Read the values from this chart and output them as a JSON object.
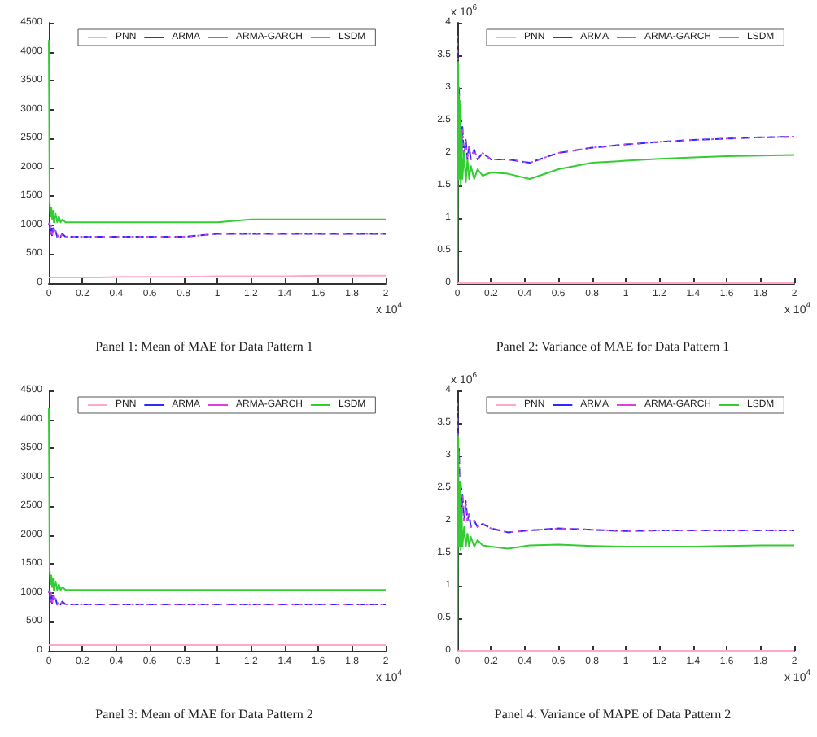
{
  "chart_data": [
    {
      "type": "line",
      "title": "Panel 1: Mean of MAE for Data Pattern 1",
      "legend": "top",
      "grid": false,
      "marker": "none",
      "annotations": [
        "x 10$^{4}$"
      ],
      "x": [
        0,
        0.005,
        0.01,
        0.015,
        0.02,
        0.025,
        0.03,
        0.04,
        0.05,
        0.06,
        0.07,
        0.08,
        0.1,
        0.12,
        0.15,
        0.2,
        0.3,
        0.43,
        0.6,
        0.8,
        1.0,
        1.2,
        1.4,
        1.6,
        1.8,
        2.0
      ],
      "xlim": [
        0,
        2
      ],
      "xticks": [
        0,
        0.2,
        0.4,
        0.6,
        0.8,
        1,
        1.2,
        1.4,
        1.6,
        1.8,
        2
      ],
      "ylim": [
        0,
        4500
      ],
      "yticks": [
        0,
        500,
        1000,
        1500,
        2000,
        2500,
        3000,
        3500,
        4000,
        4500
      ],
      "series": [
        {
          "name": "PNN",
          "color": "#ffa8c8",
          "line_style": "solid",
          "values": [
            100,
            100,
            100,
            100,
            100,
            100,
            100,
            100,
            100,
            100,
            100,
            100,
            100,
            100,
            100,
            100,
            100,
            110,
            110,
            110,
            120,
            120,
            120,
            130,
            130,
            130
          ]
        },
        {
          "name": "ARMA",
          "color": "#2b2bff",
          "line_style": "dashed",
          "values": [
            1000,
            1050,
            850,
            1000,
            800,
            950,
            850,
            900,
            800,
            850,
            800,
            850,
            800,
            800,
            800,
            800,
            800,
            800,
            800,
            800,
            850,
            850,
            850,
            850,
            850,
            850
          ]
        },
        {
          "name": "ARMA-GARCH",
          "color": "#e040e0",
          "line_style": "dotted",
          "values": [
            1000,
            1050,
            850,
            1000,
            800,
            950,
            850,
            900,
            800,
            850,
            800,
            850,
            800,
            800,
            800,
            800,
            800,
            800,
            800,
            800,
            850,
            850,
            850,
            850,
            850,
            850
          ]
        },
        {
          "name": "LSDM",
          "color": "#33cc33",
          "line_style": "solid",
          "values": [
            4200,
            1400,
            1150,
            1300,
            1100,
            1250,
            1050,
            1200,
            1050,
            1150,
            1050,
            1100,
            1050,
            1050,
            1050,
            1050,
            1050,
            1050,
            1050,
            1050,
            1050,
            1100,
            1100,
            1100,
            1100,
            1100
          ]
        }
      ]
    },
    {
      "type": "line",
      "title": "Panel 2: Variance of MAE for Data Pattern 1",
      "legend": "top",
      "grid": false,
      "marker": "none",
      "annotations": [
        "x 10$^{4}$",
        "x 10$^{6}$"
      ],
      "x": [
        0,
        0.005,
        0.01,
        0.015,
        0.02,
        0.025,
        0.03,
        0.04,
        0.05,
        0.06,
        0.07,
        0.08,
        0.1,
        0.12,
        0.15,
        0.2,
        0.3,
        0.43,
        0.6,
        0.8,
        1.0,
        1.2,
        1.4,
        1.6,
        1.8,
        2.0
      ],
      "xlim": [
        0,
        2
      ],
      "xticks": [
        0,
        0.2,
        0.4,
        0.6,
        0.8,
        1,
        1.2,
        1.4,
        1.6,
        1.8,
        2
      ],
      "ylim": [
        0,
        4
      ],
      "yticks": [
        0,
        0.5,
        1,
        1.5,
        2,
        2.5,
        3,
        3.5,
        4
      ],
      "series": [
        {
          "name": "PNN",
          "color": "#ffa8c8",
          "line_style": "solid",
          "values": [
            0,
            0,
            0,
            0,
            0,
            0,
            0,
            0,
            0,
            0,
            0,
            0,
            0,
            0,
            0,
            0,
            0,
            0,
            0,
            0,
            0,
            0,
            0,
            0,
            0,
            0
          ]
        },
        {
          "name": "ARMA",
          "color": "#2b2bff",
          "line_style": "dashed",
          "values": [
            3.8,
            2.6,
            3.0,
            2.2,
            2.6,
            2.0,
            2.4,
            1.9,
            2.2,
            1.9,
            2.1,
            1.9,
            2.05,
            1.9,
            2.0,
            1.9,
            1.9,
            1.85,
            2.0,
            2.08,
            2.13,
            2.17,
            2.2,
            2.22,
            2.24,
            2.25
          ]
        },
        {
          "name": "ARMA-GARCH",
          "color": "#e040e0",
          "line_style": "dotted",
          "values": [
            3.8,
            2.6,
            3.0,
            2.2,
            2.6,
            2.0,
            2.4,
            1.9,
            2.2,
            1.9,
            2.1,
            1.9,
            2.05,
            1.9,
            2.0,
            1.9,
            1.9,
            1.85,
            2.0,
            2.08,
            2.13,
            2.17,
            2.2,
            2.22,
            2.24,
            2.25
          ]
        },
        {
          "name": "LSDM",
          "color": "#33cc33",
          "line_style": "solid",
          "values": [
            0,
            3.4,
            1.6,
            2.8,
            1.5,
            2.3,
            1.6,
            2.0,
            1.55,
            1.9,
            1.6,
            1.8,
            1.6,
            1.75,
            1.65,
            1.7,
            1.68,
            1.6,
            1.75,
            1.85,
            1.88,
            1.91,
            1.93,
            1.95,
            1.96,
            1.97
          ]
        }
      ]
    },
    {
      "type": "line",
      "title": "Panel 3: Mean of MAE for Data Pattern 2",
      "legend": "top",
      "grid": false,
      "marker": "none",
      "annotations": [
        "x 10$^{4}$"
      ],
      "x": [
        0,
        0.005,
        0.01,
        0.015,
        0.02,
        0.025,
        0.03,
        0.04,
        0.05,
        0.06,
        0.07,
        0.08,
        0.1,
        0.12,
        0.15,
        0.2,
        0.3,
        0.43,
        0.6,
        0.8,
        1.0,
        1.2,
        1.4,
        1.6,
        1.8,
        2.0
      ],
      "xlim": [
        0,
        2
      ],
      "xticks": [
        0,
        0.2,
        0.4,
        0.6,
        0.8,
        1,
        1.2,
        1.4,
        1.6,
        1.8,
        2
      ],
      "ylim": [
        0,
        4500
      ],
      "yticks": [
        0,
        500,
        1000,
        1500,
        2000,
        2500,
        3000,
        3500,
        4000,
        4500
      ],
      "series": [
        {
          "name": "PNN",
          "color": "#ffa8c8",
          "line_style": "solid",
          "values": [
            100,
            100,
            100,
            100,
            100,
            100,
            100,
            100,
            100,
            100,
            100,
            100,
            100,
            100,
            100,
            100,
            100,
            100,
            100,
            100,
            100,
            100,
            100,
            100,
            100,
            100
          ]
        },
        {
          "name": "ARMA",
          "color": "#2b2bff",
          "line_style": "dashed",
          "values": [
            1000,
            1050,
            850,
            1000,
            800,
            950,
            850,
            900,
            800,
            850,
            800,
            850,
            800,
            800,
            800,
            800,
            800,
            800,
            800,
            800,
            800,
            800,
            800,
            800,
            800,
            800
          ]
        },
        {
          "name": "ARMA-GARCH",
          "color": "#e040e0",
          "line_style": "dotted",
          "values": [
            1000,
            1050,
            850,
            1000,
            800,
            950,
            850,
            900,
            800,
            850,
            800,
            850,
            800,
            800,
            800,
            800,
            800,
            800,
            800,
            800,
            800,
            800,
            800,
            800,
            800,
            800
          ]
        },
        {
          "name": "LSDM",
          "color": "#33cc33",
          "line_style": "solid",
          "values": [
            4200,
            1400,
            1150,
            1300,
            1100,
            1250,
            1050,
            1200,
            1050,
            1150,
            1050,
            1100,
            1050,
            1050,
            1050,
            1050,
            1050,
            1050,
            1050,
            1050,
            1050,
            1050,
            1050,
            1050,
            1050,
            1050
          ]
        }
      ]
    },
    {
      "type": "line",
      "title": "Panel 4: Variance of MAPE of Data Pattern 2",
      "legend": "top",
      "grid": false,
      "marker": "none",
      "annotations": [
        "x 10$^{4}$",
        "x 10$^{6}$"
      ],
      "x": [
        0,
        0.005,
        0.01,
        0.015,
        0.02,
        0.025,
        0.03,
        0.04,
        0.05,
        0.06,
        0.07,
        0.08,
        0.1,
        0.12,
        0.15,
        0.2,
        0.3,
        0.43,
        0.6,
        0.8,
        1.0,
        1.2,
        1.4,
        1.6,
        1.8,
        2.0
      ],
      "xlim": [
        0,
        2
      ],
      "xticks": [
        0,
        0.2,
        0.4,
        0.6,
        0.8,
        1,
        1.2,
        1.4,
        1.6,
        1.8,
        2
      ],
      "ylim": [
        0,
        4
      ],
      "yticks": [
        0,
        0.5,
        1,
        1.5,
        2,
        2.5,
        3,
        3.5,
        4
      ],
      "series": [
        {
          "name": "PNN",
          "color": "#ffa8c8",
          "line_style": "solid",
          "values": [
            0,
            0,
            0,
            0,
            0,
            0,
            0,
            0,
            0,
            0,
            0,
            0,
            0,
            0,
            0,
            0,
            0,
            0,
            0,
            0,
            0,
            0,
            0,
            0,
            0,
            0
          ]
        },
        {
          "name": "ARMA",
          "color": "#2b2bff",
          "line_style": "dashed",
          "values": [
            3.8,
            2.8,
            3.1,
            2.3,
            2.6,
            2.1,
            2.4,
            2.0,
            2.3,
            2.0,
            2.1,
            1.9,
            2.0,
            1.9,
            1.95,
            1.88,
            1.82,
            1.85,
            1.88,
            1.86,
            1.84,
            1.85,
            1.85,
            1.85,
            1.85,
            1.85
          ]
        },
        {
          "name": "ARMA-GARCH",
          "color": "#e040e0",
          "line_style": "dotted",
          "values": [
            3.8,
            2.8,
            3.1,
            2.3,
            2.6,
            2.1,
            2.4,
            2.0,
            2.3,
            2.0,
            2.1,
            1.9,
            2.0,
            1.9,
            1.95,
            1.88,
            1.82,
            1.85,
            1.88,
            1.86,
            1.84,
            1.85,
            1.85,
            1.85,
            1.85,
            1.85
          ]
        },
        {
          "name": "LSDM",
          "color": "#33cc33",
          "line_style": "solid",
          "values": [
            0,
            3.3,
            1.6,
            2.6,
            1.55,
            2.2,
            1.6,
            1.9,
            1.6,
            1.8,
            1.6,
            1.75,
            1.6,
            1.7,
            1.62,
            1.6,
            1.57,
            1.62,
            1.63,
            1.61,
            1.6,
            1.6,
            1.6,
            1.61,
            1.62,
            1.62
          ]
        }
      ]
    }
  ]
}
